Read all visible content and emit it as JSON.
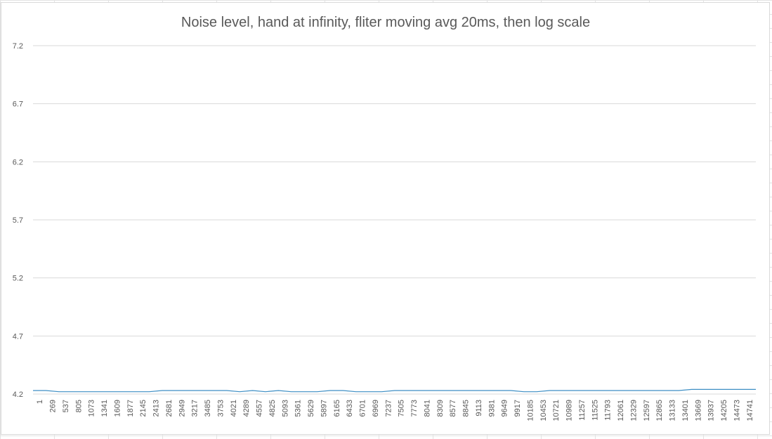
{
  "chart_data": {
    "type": "line",
    "title": "Noise level, hand at infinity, fliter moving avg 20ms, then log scale",
    "xlabel": "",
    "ylabel": "",
    "ylim": [
      4.2,
      7.2
    ],
    "yticks": [
      "7.2",
      "6.7",
      "6.2",
      "5.7",
      "5.2",
      "4.7",
      "4.2"
    ],
    "x_tick_labels": [
      "1",
      "269",
      "537",
      "805",
      "1073",
      "1341",
      "1609",
      "1877",
      "2145",
      "2413",
      "2681",
      "2949",
      "3217",
      "3485",
      "3753",
      "4021",
      "4289",
      "4557",
      "4825",
      "5093",
      "5361",
      "5629",
      "5897",
      "6165",
      "6433",
      "6701",
      "6969",
      "7237",
      "7505",
      "7773",
      "8041",
      "8309",
      "8577",
      "8845",
      "9113",
      "9381",
      "9649",
      "9917",
      "10185",
      "10453",
      "10721",
      "10989",
      "11257",
      "11525",
      "11793",
      "12061",
      "12329",
      "12597",
      "12865",
      "13133",
      "13401",
      "13669",
      "13937",
      "14205",
      "14473",
      "14741"
    ],
    "xlim": [
      1,
      15000
    ],
    "grid": true,
    "legend": "none",
    "series": [
      {
        "color": "#3d8ec4",
        "x": [
          1,
          269,
          537,
          805,
          1073,
          1341,
          1609,
          1877,
          2145,
          2413,
          2681,
          2949,
          3217,
          3485,
          3753,
          4021,
          4289,
          4557,
          4825,
          5093,
          5361,
          5629,
          5897,
          6165,
          6433,
          6701,
          6969,
          7237,
          7505,
          7773,
          8041,
          8309,
          8577,
          8845,
          9113,
          9381,
          9649,
          9917,
          10185,
          10453,
          10721,
          10989,
          11257,
          11525,
          11793,
          12061,
          12329,
          12597,
          12865,
          13133,
          13401,
          13669,
          13937,
          14205,
          14473,
          14741,
          15000
        ],
        "values": [
          4.23,
          4.23,
          4.22,
          4.22,
          4.22,
          4.22,
          4.22,
          4.22,
          4.22,
          4.22,
          4.23,
          4.23,
          4.23,
          4.23,
          4.23,
          4.23,
          4.22,
          4.23,
          4.22,
          4.23,
          4.22,
          4.22,
          4.22,
          4.23,
          4.23,
          4.22,
          4.22,
          4.22,
          4.23,
          4.23,
          4.23,
          4.23,
          4.23,
          4.23,
          4.23,
          4.23,
          4.23,
          4.23,
          4.22,
          4.22,
          4.23,
          4.23,
          4.23,
          4.23,
          4.23,
          4.23,
          4.23,
          4.23,
          4.23,
          4.23,
          4.23,
          4.24,
          4.24,
          4.24,
          4.24,
          4.24,
          4.24
        ]
      }
    ]
  }
}
